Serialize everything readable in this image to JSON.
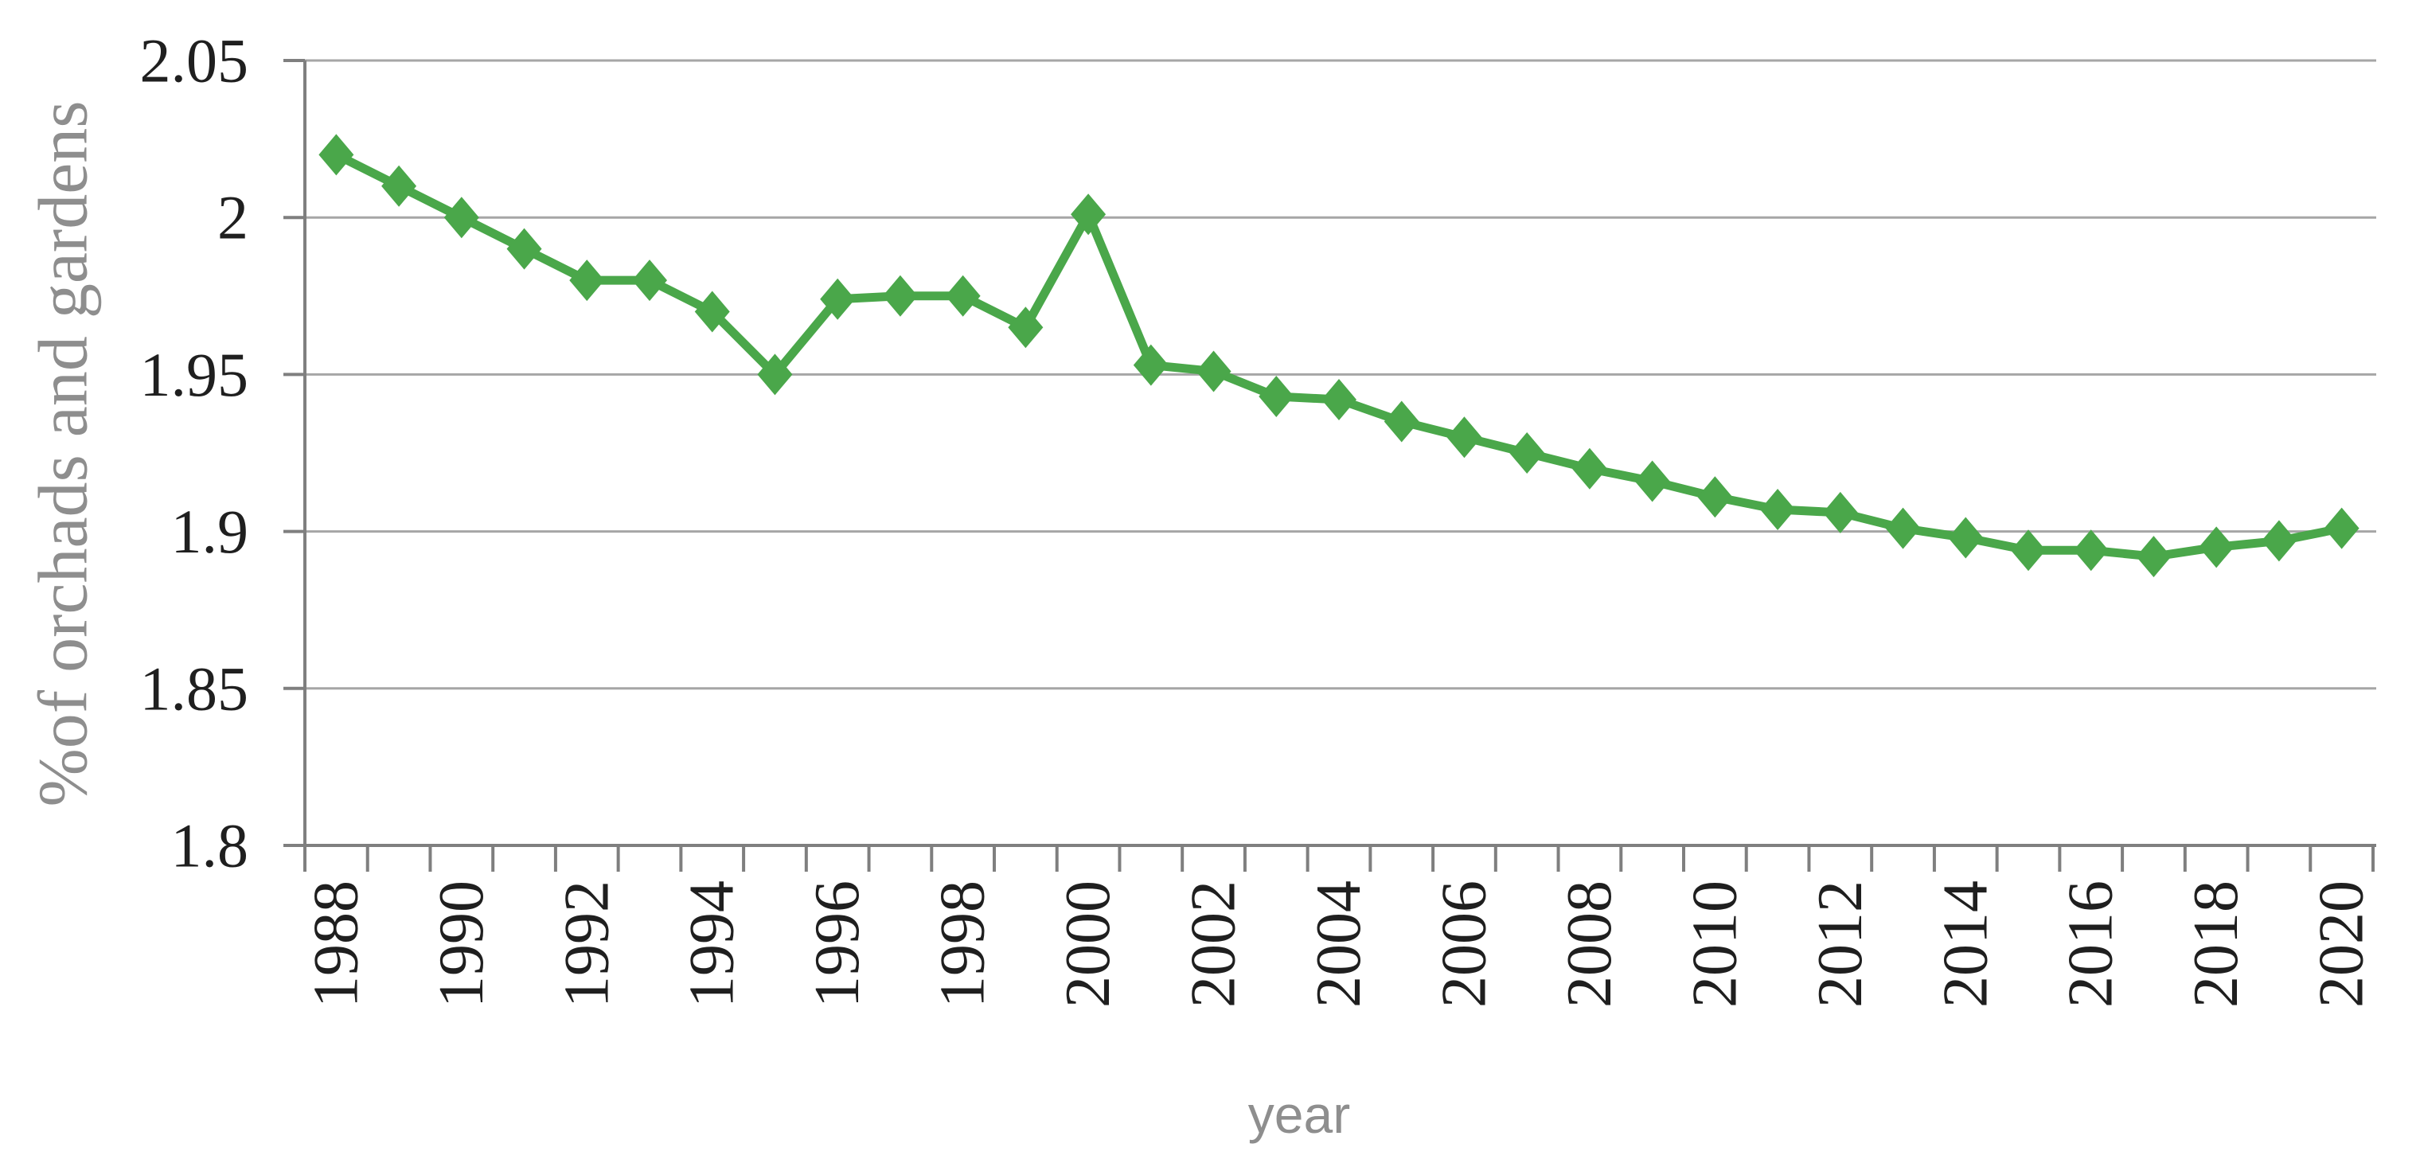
{
  "chart_data": {
    "type": "line",
    "title": "",
    "xlabel": "year",
    "ylabel": "%of orchads and gardens",
    "series_name": "% of orchards and gardens",
    "x": [
      1988,
      1989,
      1990,
      1991,
      1992,
      1993,
      1994,
      1995,
      1996,
      1997,
      1998,
      1999,
      2000,
      2001,
      2002,
      2003,
      2004,
      2005,
      2006,
      2007,
      2008,
      2009,
      2010,
      2011,
      2012,
      2013,
      2014,
      2015,
      2016,
      2017,
      2018,
      2019,
      2020
    ],
    "values": [
      2.02,
      2.01,
      2.0,
      1.99,
      1.98,
      1.98,
      1.97,
      1.95,
      1.974,
      1.975,
      1.975,
      1.965,
      2.001,
      1.953,
      1.951,
      1.943,
      1.942,
      1.935,
      1.93,
      1.925,
      1.92,
      1.916,
      1.911,
      1.907,
      1.906,
      1.901,
      1.898,
      1.894,
      1.894,
      1.892,
      1.895,
      1.897,
      1.901
    ],
    "ylim": [
      1.8,
      2.05
    ],
    "ytick_values": [
      2.05,
      2.0,
      1.95,
      1.9,
      1.85,
      1.8
    ],
    "ytick_labels": [
      "2.05",
      "2",
      "1.95",
      "1.9",
      "1.85",
      "1.8"
    ],
    "xtick_labels": [
      "1988",
      "1990",
      "1992",
      "1994",
      "1996",
      "1998",
      "2000",
      "2002",
      "2004",
      "2006",
      "2008",
      "2010",
      "2012",
      "2014",
      "2016",
      "2018",
      "2020"
    ],
    "grid": "horizontal",
    "legend": "none",
    "marker": "diamond",
    "x_label_rotation": -90
  },
  "colors": {
    "background": "#ffffff",
    "line": "#4AA74A",
    "marker": "#4AA74A",
    "gridline": "#A6A6A6",
    "axis": "#7F7F7F",
    "tick_label": "#1F1F1F",
    "axis_title": "#8E8E8E"
  }
}
